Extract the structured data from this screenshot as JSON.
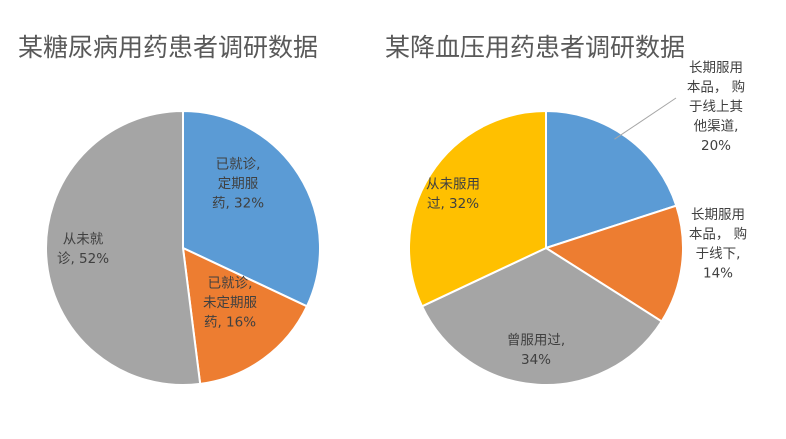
{
  "chart_data": [
    {
      "type": "pie",
      "title": "某糖尿病用药患者调研数据",
      "slices": [
        {
          "label": "已就诊，定期服药",
          "value": 32,
          "color": "#5B9BD5",
          "label_lines": [
            "已就诊,",
            "定期服",
            "药, 32%"
          ]
        },
        {
          "label": "已就诊，未定期服药",
          "value": 16,
          "color": "#ED7D31",
          "label_lines": [
            "已就诊,",
            "未定期服",
            "药, 16%"
          ]
        },
        {
          "label": "从未就诊",
          "value": 52,
          "color": "#A5A5A5",
          "label_lines": [
            "从未就",
            "诊, 52%"
          ]
        }
      ]
    },
    {
      "type": "pie",
      "title": "某降血压用药患者调研数据",
      "slices": [
        {
          "label": "长期服用本品，购于线上其他渠道",
          "value": 20,
          "color": "#5B9BD5",
          "label_lines": [
            "长期服用",
            "本品，  购",
            "于线上其",
            "他渠道,",
            "20%"
          ]
        },
        {
          "label": "长期服用本品，购于线下",
          "value": 14,
          "color": "#ED7D31",
          "label_lines": [
            "长期服用",
            "本品，  购",
            "于线下,",
            "14%"
          ]
        },
        {
          "label": "曾服用过",
          "value": 34,
          "color": "#A5A5A5",
          "label_lines": [
            "曾服用过,",
            "34%"
          ]
        },
        {
          "label": "从未服用过",
          "value": 32,
          "color": "#FFC000",
          "label_lines": [
            "从未服用",
            "过, 32%"
          ]
        }
      ]
    }
  ]
}
